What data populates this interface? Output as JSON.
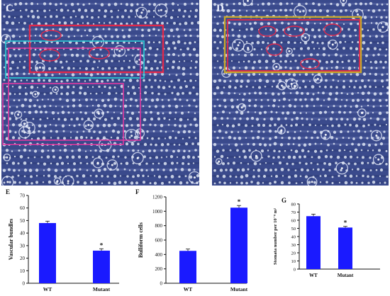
{
  "panels": {
    "c": {
      "letter": "C"
    },
    "d": {
      "letter": "D"
    }
  },
  "colors": {
    "bar": "#1a1aff",
    "micro_bg": "#3a4a8c",
    "cell": "#dfe6f5",
    "box_red": "#e0284b",
    "box_gold": "#c8a82a",
    "box_cyan": "#2ad0d8",
    "box_magenta": "#e23aa0"
  },
  "chart_data": [
    {
      "panel": "E",
      "type": "bar",
      "categories": [
        "WT",
        "Mutant"
      ],
      "values": [
        48,
        26
      ],
      "errors": [
        1.5,
        1.5
      ],
      "significance": [
        "",
        "*"
      ],
      "ylabel": "Vascular bundles",
      "ylim": [
        0,
        70
      ],
      "yticks": [
        0,
        10,
        20,
        30,
        40,
        50,
        60,
        70
      ]
    },
    {
      "panel": "F",
      "type": "bar",
      "categories": [
        "WT",
        "Mutant"
      ],
      "values": [
        450,
        1050
      ],
      "errors": [
        25,
        30
      ],
      "significance": [
        "",
        "*"
      ],
      "ylabel": "Bulliform cells",
      "ylim": [
        0,
        1200
      ],
      "yticks": [
        0,
        200,
        400,
        600,
        800,
        1000,
        1200
      ]
    },
    {
      "panel": "G",
      "type": "bar",
      "categories": [
        "WT",
        "Mutant"
      ],
      "values": [
        65,
        51
      ],
      "errors": [
        2.5,
        1.5
      ],
      "significance": [
        "",
        "*"
      ],
      "ylabel": "Stomata number per 10⁻⁸ m²",
      "ylim": [
        0,
        80
      ],
      "yticks": [
        0,
        10,
        20,
        30,
        40,
        50,
        60,
        70,
        80
      ]
    }
  ]
}
